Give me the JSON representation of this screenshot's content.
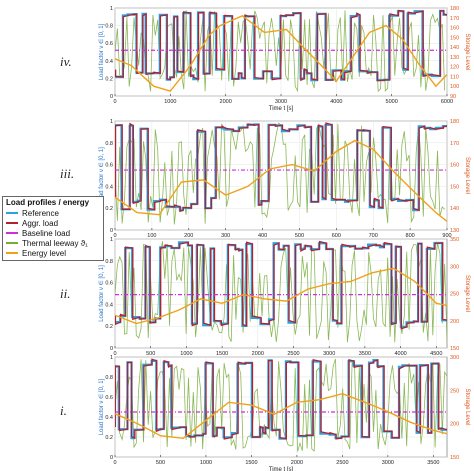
{
  "roman_labels": {
    "iv": "iv.",
    "iii": "iii.",
    "ii": "ii.",
    "i": "i."
  },
  "legend": {
    "title": "Load profiles / energy",
    "entries": [
      {
        "label": "Reference",
        "color": "#2aa1e0",
        "style": "solid"
      },
      {
        "label": "Aggr. load",
        "color": "#b3212f",
        "style": "solid"
      },
      {
        "label": "Baseline load",
        "color": "#d22be0",
        "style": "dashdot"
      },
      {
        "label": "Thermal leeway ϑ₁",
        "color": "#77ac3a",
        "style": "solid"
      },
      {
        "label": "Energy level",
        "color": "#f0a11c",
        "style": "solid"
      }
    ]
  },
  "colors": {
    "reference": "#2aa1e0",
    "aggr": "#b3212f",
    "baseline": "#d22be0",
    "thermal": "#77ac3a",
    "energy": "#f0a11c",
    "ylabel_left": "#2472c8",
    "ylabel_right": "#e0571c"
  },
  "chart_data": [
    {
      "panel": "iv.",
      "type": "line",
      "xlabel": "Time t [s]",
      "ylabel": "Load factor ν ∈ [0, 1]",
      "y2label": "Storage Level",
      "xlim": [
        0,
        6000
      ],
      "ylim": [
        0,
        1
      ],
      "y2lim": [
        90,
        180
      ],
      "xticks": [
        0,
        1000,
        2000,
        3000,
        4000,
        5000,
        6000
      ],
      "yticks": [
        0,
        0.2,
        0.4,
        0.6,
        0.8,
        1
      ],
      "y2ticks": [
        90,
        100,
        110,
        120,
        130,
        140,
        150,
        160,
        170,
        180
      ],
      "baseline": 0.52,
      "energy_level": [
        [
          0,
          128
        ],
        [
          300,
          121
        ],
        [
          700,
          100
        ],
        [
          1000,
          95
        ],
        [
          1350,
          120
        ],
        [
          1700,
          152
        ],
        [
          1900,
          162
        ],
        [
          2300,
          172
        ],
        [
          2700,
          155
        ],
        [
          3100,
          158
        ],
        [
          3400,
          140
        ],
        [
          3700,
          123
        ],
        [
          4000,
          105
        ],
        [
          4300,
          130
        ],
        [
          4600,
          155
        ],
        [
          4900,
          162
        ],
        [
          5200,
          148
        ],
        [
          5500,
          122
        ],
        [
          5800,
          100
        ],
        [
          6000,
          112
        ]
      ]
    },
    {
      "panel": "iii.",
      "type": "line",
      "xlabel": "Time t [s]",
      "ylabel": "Load factor ν ∈ [0, 1]",
      "y2label": "Storage Level",
      "xlim": [
        0,
        900
      ],
      "ylim": [
        0,
        1
      ],
      "y2lim": [
        130,
        180
      ],
      "xticks": [
        0,
        100,
        200,
        300,
        400,
        500,
        600,
        700,
        800,
        900
      ],
      "yticks": [
        0,
        0.2,
        0.4,
        0.6,
        0.8,
        1
      ],
      "y2ticks": [
        130,
        140,
        150,
        160,
        170,
        180
      ],
      "baseline": 0.55,
      "energy_level": [
        [
          0,
          145
        ],
        [
          60,
          138
        ],
        [
          120,
          137
        ],
        [
          180,
          152
        ],
        [
          240,
          153
        ],
        [
          300,
          146
        ],
        [
          360,
          150
        ],
        [
          420,
          158
        ],
        [
          480,
          160
        ],
        [
          540,
          157
        ],
        [
          600,
          166
        ],
        [
          650,
          171
        ],
        [
          700,
          167
        ],
        [
          760,
          156
        ],
        [
          820,
          146
        ],
        [
          870,
          138
        ],
        [
          900,
          134
        ]
      ]
    },
    {
      "panel": "ii.",
      "type": "line",
      "xlabel": "Time t [s]",
      "ylabel": "Load factor ν ∈ [0, 1]",
      "y2label": "Storage Level",
      "xlim": [
        0,
        4650
      ],
      "ylim": [
        0,
        1
      ],
      "y2lim": [
        150,
        350
      ],
      "xticks": [
        0,
        500,
        1000,
        1500,
        2000,
        2500,
        3000,
        3500,
        4000,
        4500
      ],
      "yticks": [
        0,
        0.2,
        0.4,
        0.6,
        0.8,
        1
      ],
      "y2ticks": [
        150,
        200,
        250,
        300,
        350
      ],
      "baseline": 0.49,
      "energy_level": [
        [
          0,
          210
        ],
        [
          300,
          195
        ],
        [
          600,
          205
        ],
        [
          900,
          220
        ],
        [
          1200,
          240
        ],
        [
          1500,
          232
        ],
        [
          1800,
          248
        ],
        [
          2100,
          240
        ],
        [
          2400,
          236
        ],
        [
          2700,
          258
        ],
        [
          3000,
          268
        ],
        [
          3300,
          272
        ],
        [
          3600,
          288
        ],
        [
          3900,
          296
        ],
        [
          4200,
          272
        ],
        [
          4500,
          232
        ],
        [
          4650,
          228
        ]
      ]
    },
    {
      "panel": "i.",
      "type": "line",
      "xlabel": "Time t [s]",
      "ylabel": "Load factor ν ∈ [0, 1]",
      "y2label": "Storage Level",
      "xlim": [
        0,
        3650
      ],
      "ylim": [
        0,
        1
      ],
      "y2lim": [
        150,
        300
      ],
      "xticks": [
        0,
        500,
        1000,
        1500,
        2000,
        2500,
        3000,
        3500
      ],
      "yticks": [
        0,
        0.2,
        0.4,
        0.6,
        0.8,
        1
      ],
      "y2ticks": [
        150,
        200,
        250,
        300
      ],
      "baseline": 0.45,
      "energy_level": [
        [
          0,
          215
        ],
        [
          250,
          200
        ],
        [
          500,
          182
        ],
        [
          750,
          178
        ],
        [
          1000,
          205
        ],
        [
          1250,
          232
        ],
        [
          1500,
          228
        ],
        [
          1750,
          214
        ],
        [
          2000,
          232
        ],
        [
          2250,
          236
        ],
        [
          2500,
          245
        ],
        [
          2750,
          232
        ],
        [
          3000,
          218
        ],
        [
          3250,
          202
        ],
        [
          3500,
          190
        ],
        [
          3650,
          185
        ]
      ]
    }
  ]
}
